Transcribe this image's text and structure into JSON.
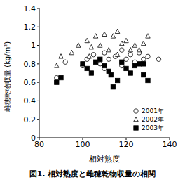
{
  "chart_data": {
    "type": "scatter",
    "title": "図1. 相対熟度と雌穂乾物収量の相関",
    "x_label": "相対熟度",
    "y_label": "雌穂乾物収量 (kg/m²)",
    "xlim": [
      80,
      140
    ],
    "xticks": [
      80,
      100,
      120,
      140
    ],
    "ylim": [
      0,
      1.4
    ],
    "yticks": [
      0,
      0.2,
      0.4,
      0.6,
      0.8,
      1,
      1.2,
      1.4
    ],
    "grid": false,
    "legend": "lower right",
    "series": [
      {
        "name": "2001年",
        "color": "#000000",
        "marker": "circle_open",
        "x": [
          88,
          92,
          100,
          102,
          105,
          108,
          110,
          112,
          115,
          118,
          120,
          122,
          124,
          126,
          128,
          130,
          135,
          110,
          118
        ],
        "values": [
          0.65,
          0.82,
          0.78,
          0.85,
          0.9,
          0.8,
          0.92,
          0.85,
          0.88,
          0.78,
          0.85,
          0.9,
          0.82,
          0.92,
          0.85,
          0.88,
          0.85,
          0.75,
          0.95
        ]
      },
      {
        "name": "2002年",
        "color": "#000000",
        "marker": "triangle_open",
        "x": [
          88,
          90,
          95,
          98,
          102,
          104,
          106,
          108,
          110,
          112,
          114,
          116,
          118,
          120,
          122,
          124,
          126,
          128,
          130,
          116,
          103
        ],
        "values": [
          0.78,
          0.88,
          0.92,
          1.0,
          1.05,
          0.98,
          1.1,
          1.0,
          1.12,
          0.95,
          1.1,
          0.9,
          1.02,
          1.05,
          0.95,
          1.0,
          0.95,
          1.02,
          1.1,
          1.15,
          0.88
        ]
      },
      {
        "name": "2003年",
        "color": "#000000",
        "marker": "square",
        "x": [
          88,
          90,
          100,
          102,
          104,
          108,
          110,
          112,
          114,
          116,
          118,
          120,
          122,
          124,
          126,
          128,
          130,
          128,
          106,
          113
        ],
        "values": [
          0.6,
          0.65,
          0.8,
          0.75,
          0.7,
          0.85,
          0.78,
          0.72,
          0.55,
          0.62,
          0.82,
          0.75,
          0.7,
          0.78,
          0.8,
          0.68,
          0.62,
          0.8,
          0.82,
          0.68
        ]
      }
    ]
  }
}
